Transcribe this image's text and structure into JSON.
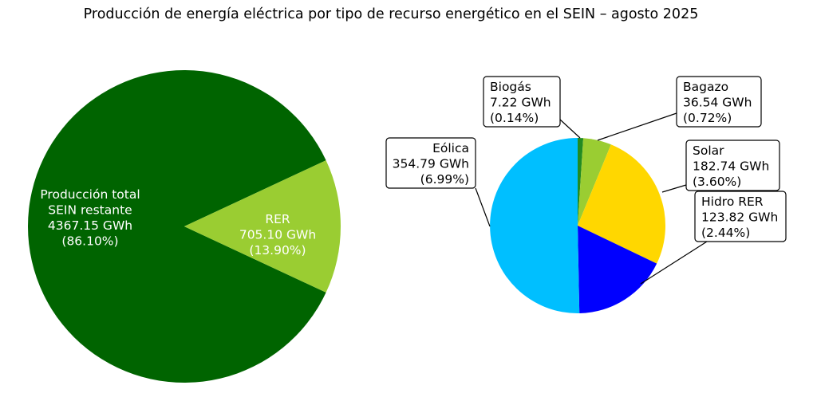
{
  "chart_data": [
    {
      "type": "pie",
      "title": "Producción de energía eléctrica por tipo de recurso energético en el SEIN – agosto 2025",
      "slices": [
        {
          "lines": [
            "Producción total",
            "SEIN restante",
            "4367.15 GWh",
            "(86.10%)"
          ],
          "value": 4367.15,
          "percent": 86.1,
          "color": "#006400"
        },
        {
          "lines": [
            "RER",
            "705.10 GWh",
            "(13.90%)"
          ],
          "value": 705.1,
          "percent": 13.9,
          "color": "#9ACD32"
        }
      ]
    },
    {
      "type": "pie",
      "title": "",
      "slices": [
        {
          "lines": [
            "Biogás",
            "7.22 GWh",
            "(0.14%)"
          ],
          "value": 7.22,
          "percent": 0.14,
          "color": "#228B22"
        },
        {
          "lines": [
            "Bagazo",
            "36.54 GWh",
            "(0.72%)"
          ],
          "value": 36.54,
          "percent": 0.72,
          "color": "#9ACD32"
        },
        {
          "lines": [
            "Solar",
            "182.74 GWh",
            "(3.60%)"
          ],
          "value": 182.74,
          "percent": 3.6,
          "color": "#FFD700"
        },
        {
          "lines": [
            "Hidro RER",
            "123.82 GWh",
            "(2.44%)"
          ],
          "value": 123.82,
          "percent": 2.44,
          "color": "#0000FF"
        },
        {
          "lines": [
            "Eólica",
            "354.79 GWh",
            "(6.99%)"
          ],
          "value": 354.79,
          "percent": 6.99,
          "color": "#00BFFF"
        }
      ]
    }
  ]
}
